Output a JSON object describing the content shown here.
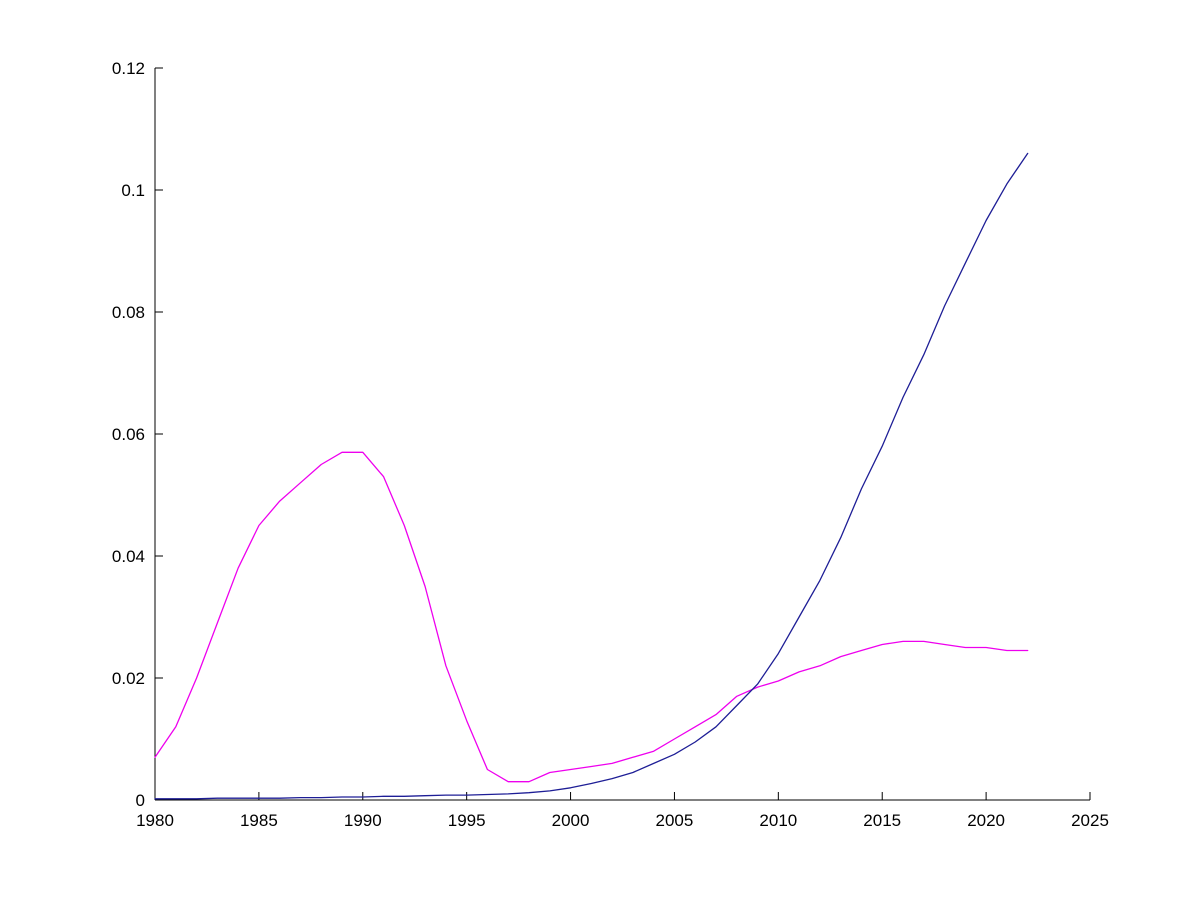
{
  "chart_data": {
    "type": "line",
    "title": "",
    "xlabel": "",
    "ylabel": "",
    "xlim": [
      1980,
      2025
    ],
    "ylim": [
      0,
      0.12
    ],
    "x_ticks": [
      1980,
      1985,
      1990,
      1995,
      2000,
      2005,
      2010,
      2015,
      2020,
      2025
    ],
    "y_ticks": [
      0,
      0.02,
      0.04,
      0.06,
      0.08,
      0.1,
      0.12
    ],
    "y_tick_labels": [
      "0",
      "0.02",
      "0.04",
      "0.06",
      "0.08",
      "0.1",
      "0.12"
    ],
    "grid": false,
    "legend": "none",
    "x": [
      1980,
      1981,
      1982,
      1983,
      1984,
      1985,
      1986,
      1987,
      1988,
      1989,
      1990,
      1991,
      1992,
      1993,
      1994,
      1995,
      1996,
      1997,
      1998,
      1999,
      2000,
      2001,
      2002,
      2003,
      2004,
      2005,
      2006,
      2007,
      2008,
      2009,
      2010,
      2011,
      2012,
      2013,
      2014,
      2015,
      2016,
      2017,
      2018,
      2019,
      2020,
      2021,
      2022
    ],
    "series": [
      {
        "name": "magenta-series",
        "color": "#EE00EE",
        "values": [
          0.007,
          0.012,
          0.02,
          0.029,
          0.038,
          0.045,
          0.049,
          0.052,
          0.055,
          0.057,
          0.057,
          0.053,
          0.045,
          0.035,
          0.022,
          0.013,
          0.005,
          0.003,
          0.003,
          0.0045,
          0.005,
          0.0055,
          0.006,
          0.007,
          0.008,
          0.01,
          0.012,
          0.014,
          0.017,
          0.0185,
          0.0195,
          0.021,
          0.022,
          0.0235,
          0.0245,
          0.0255,
          0.026,
          0.026,
          0.0255,
          0.025,
          0.025,
          0.0245,
          0.0245
        ]
      },
      {
        "name": "dark-blue-series",
        "color": "#1E1E96",
        "values": [
          0.0002,
          0.0002,
          0.0002,
          0.0003,
          0.0003,
          0.0003,
          0.0003,
          0.0004,
          0.0004,
          0.0005,
          0.0005,
          0.0006,
          0.0006,
          0.0007,
          0.0008,
          0.0008,
          0.0009,
          0.001,
          0.0012,
          0.0015,
          0.002,
          0.0027,
          0.0035,
          0.0045,
          0.006,
          0.0075,
          0.0095,
          0.012,
          0.0155,
          0.019,
          0.024,
          0.03,
          0.036,
          0.043,
          0.051,
          0.058,
          0.066,
          0.073,
          0.081,
          0.088,
          0.095,
          0.101,
          0.106
        ]
      }
    ]
  },
  "colors": {
    "background": "#FFFFFF",
    "axis": "#000000"
  }
}
